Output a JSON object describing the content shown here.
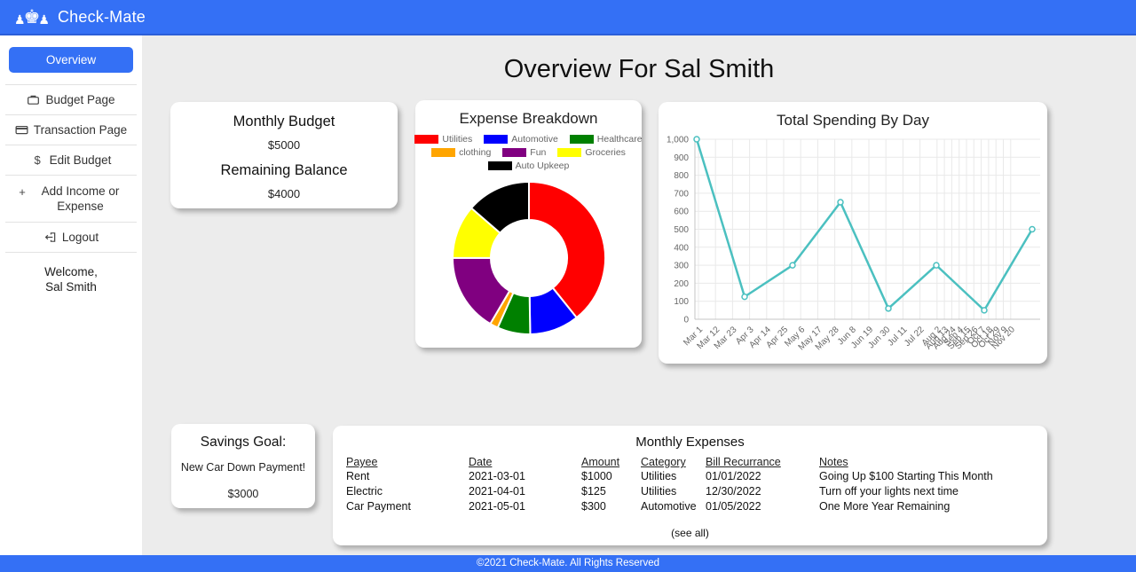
{
  "app": {
    "name": "Check-Mate",
    "logo": "chess-pieces-icon"
  },
  "sidebar": {
    "items": [
      {
        "label": "Overview",
        "active": true
      },
      {
        "label": "Budget Page",
        "icon": "briefcase-icon"
      },
      {
        "label": "Transaction Page",
        "icon": "credit-card-icon"
      },
      {
        "label": "Edit Budget",
        "icon": "dollar-icon"
      },
      {
        "label": "Add Income or Expense",
        "icon": "plus-icon"
      },
      {
        "label": "Logout",
        "icon": "logout-icon"
      }
    ],
    "welcome": {
      "line1": "Welcome,",
      "line2": "Sal Smith"
    }
  },
  "page": {
    "title": "Overview For Sal Smith"
  },
  "cards": {
    "budget": {
      "title": "Monthly Budget",
      "amount": "$5000",
      "balance_title": "Remaining Balance",
      "balance_amount": "$4000"
    },
    "savings": {
      "title": "Savings Goal:",
      "goal": "New Car Down Payment!",
      "amount": "$3000"
    },
    "expenses": {
      "title": "Monthly Expenses",
      "columns": [
        "Payee",
        "Date",
        "Amount",
        "Category",
        "Bill Recurrance",
        "Notes"
      ],
      "rows": [
        {
          "payee": "Rent",
          "date": "2021-03-01",
          "amount": "$1000",
          "category": "Utilities",
          "recurrance": "01/01/2022",
          "notes": "Going Up $100 Starting This Month"
        },
        {
          "payee": "Electric",
          "date": "2021-04-01",
          "amount": "$125",
          "category": "Utilities",
          "recurrance": "12/30/2022",
          "notes": "Turn off your lights next time"
        },
        {
          "payee": "Car Payment",
          "date": "2021-05-01",
          "amount": "$300",
          "category": "Automotive",
          "recurrance": "01/05/2022",
          "notes": "One More Year Remaining"
        }
      ],
      "see_all": "(see all)"
    }
  },
  "footer": {
    "copyright": "©2021 Check-Mate. All Rights Reserved"
  },
  "colors": {
    "brand_blue": "#3470f5",
    "chart_teal": "#4bc0c0",
    "page_background": "#ececec"
  },
  "chart_data": [
    {
      "type": "pie",
      "variant": "doughnut",
      "title": "Expense Breakdown",
      "labels": [
        "Utilities",
        "Automotive",
        "Healthcare",
        "clothing",
        "Fun",
        "Groceries",
        "Auto Upkeep"
      ],
      "values": [
        1125,
        300,
        200,
        50,
        475,
        325,
        390
      ],
      "colors": [
        "#ff0000",
        "#0000ff",
        "#008000",
        "#ffa500",
        "#800080",
        "#ffff00",
        "#000000"
      ],
      "legend_position": "top",
      "legend_rows": [
        [
          0,
          1,
          2
        ],
        [
          3,
          4,
          5
        ],
        [
          6
        ]
      ]
    },
    {
      "type": "line",
      "title": "Total Spending By Day",
      "x": [
        "Mar 1",
        "Apr 3",
        "May 6",
        "May 28",
        "Jun 30",
        "Aug 2",
        "Sep 26",
        "Nov 20"
      ],
      "values": [
        1000,
        125,
        300,
        650,
        60,
        300,
        50,
        500
      ],
      "x_axis_tick_labels": [
        "Mar 1",
        "Mar 12",
        "Mar 23",
        "Apr 3",
        "Apr 14",
        "Apr 25",
        "May 6",
        "May 17",
        "May 28",
        "Jun 8",
        "Jun 19",
        "Jun 30",
        "Jul 11",
        "Jul 22",
        "Aug 2",
        "Aug 13",
        "Aug 24",
        "Sep 4",
        "Sep 15",
        "Sep 26",
        "Oct 7",
        "Oct 18",
        "Oct 29",
        "Nov 9",
        "Nov 20"
      ],
      "ylim": [
        0,
        1000
      ],
      "ytick_step": 100,
      "line_color": "#4bc0c0",
      "grid": true,
      "legend": false
    }
  ]
}
